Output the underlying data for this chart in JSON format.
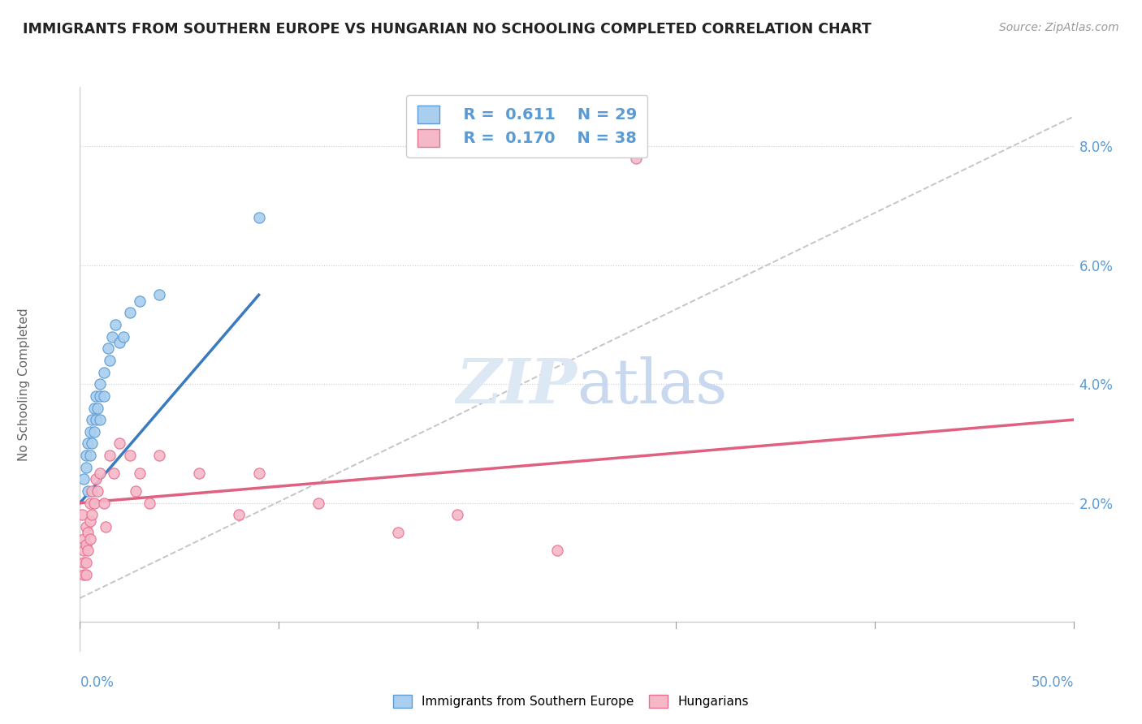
{
  "title": "IMMIGRANTS FROM SOUTHERN EUROPE VS HUNGARIAN NO SCHOOLING COMPLETED CORRELATION CHART",
  "source": "Source: ZipAtlas.com",
  "ylabel": "No Schooling Completed",
  "right_yticks": [
    "2.0%",
    "4.0%",
    "6.0%",
    "8.0%"
  ],
  "right_ytick_vals": [
    0.02,
    0.04,
    0.06,
    0.08
  ],
  "xlim": [
    0.0,
    0.5
  ],
  "ylim": [
    -0.005,
    0.09
  ],
  "legend1_R": "0.611",
  "legend1_N": "29",
  "legend2_R": "0.170",
  "legend2_N": "38",
  "blue_fill": "#aacfee",
  "blue_edge": "#5b9bd5",
  "pink_fill": "#f4b8c8",
  "pink_edge": "#e87090",
  "blue_line_color": "#3a7abf",
  "pink_line_color": "#e06080",
  "gray_dash_color": "#bbbbbb",
  "watermark_color": "#dde8f5",
  "background_color": "#ffffff",
  "blue_scatter_x": [
    0.002,
    0.003,
    0.003,
    0.004,
    0.004,
    0.005,
    0.005,
    0.006,
    0.006,
    0.007,
    0.007,
    0.008,
    0.008,
    0.009,
    0.01,
    0.01,
    0.01,
    0.012,
    0.012,
    0.014,
    0.015,
    0.016,
    0.018,
    0.02,
    0.022,
    0.025,
    0.03,
    0.04,
    0.09
  ],
  "blue_scatter_y": [
    0.024,
    0.026,
    0.028,
    0.022,
    0.03,
    0.032,
    0.028,
    0.034,
    0.03,
    0.036,
    0.032,
    0.038,
    0.034,
    0.036,
    0.04,
    0.038,
    0.034,
    0.042,
    0.038,
    0.046,
    0.044,
    0.048,
    0.05,
    0.047,
    0.048,
    0.052,
    0.054,
    0.055,
    0.068
  ],
  "pink_scatter_x": [
    0.001,
    0.002,
    0.002,
    0.002,
    0.002,
    0.003,
    0.003,
    0.003,
    0.003,
    0.004,
    0.004,
    0.005,
    0.005,
    0.005,
    0.006,
    0.006,
    0.007,
    0.008,
    0.009,
    0.01,
    0.012,
    0.013,
    0.015,
    0.017,
    0.02,
    0.025,
    0.028,
    0.03,
    0.035,
    0.04,
    0.06,
    0.08,
    0.09,
    0.12,
    0.16,
    0.19,
    0.24,
    0.28
  ],
  "pink_scatter_y": [
    0.018,
    0.014,
    0.012,
    0.01,
    0.008,
    0.016,
    0.013,
    0.01,
    0.008,
    0.015,
    0.012,
    0.02,
    0.017,
    0.014,
    0.022,
    0.018,
    0.02,
    0.024,
    0.022,
    0.025,
    0.02,
    0.016,
    0.028,
    0.025,
    0.03,
    0.028,
    0.022,
    0.025,
    0.02,
    0.028,
    0.025,
    0.018,
    0.025,
    0.02,
    0.015,
    0.018,
    0.012,
    0.078
  ],
  "blue_line_x": [
    0.0,
    0.09
  ],
  "blue_line_y": [
    0.02,
    0.055
  ],
  "pink_line_x": [
    0.0,
    0.5
  ],
  "pink_line_y": [
    0.02,
    0.034
  ],
  "gray_line_x": [
    0.0,
    0.5
  ],
  "gray_line_y": [
    0.004,
    0.085
  ]
}
